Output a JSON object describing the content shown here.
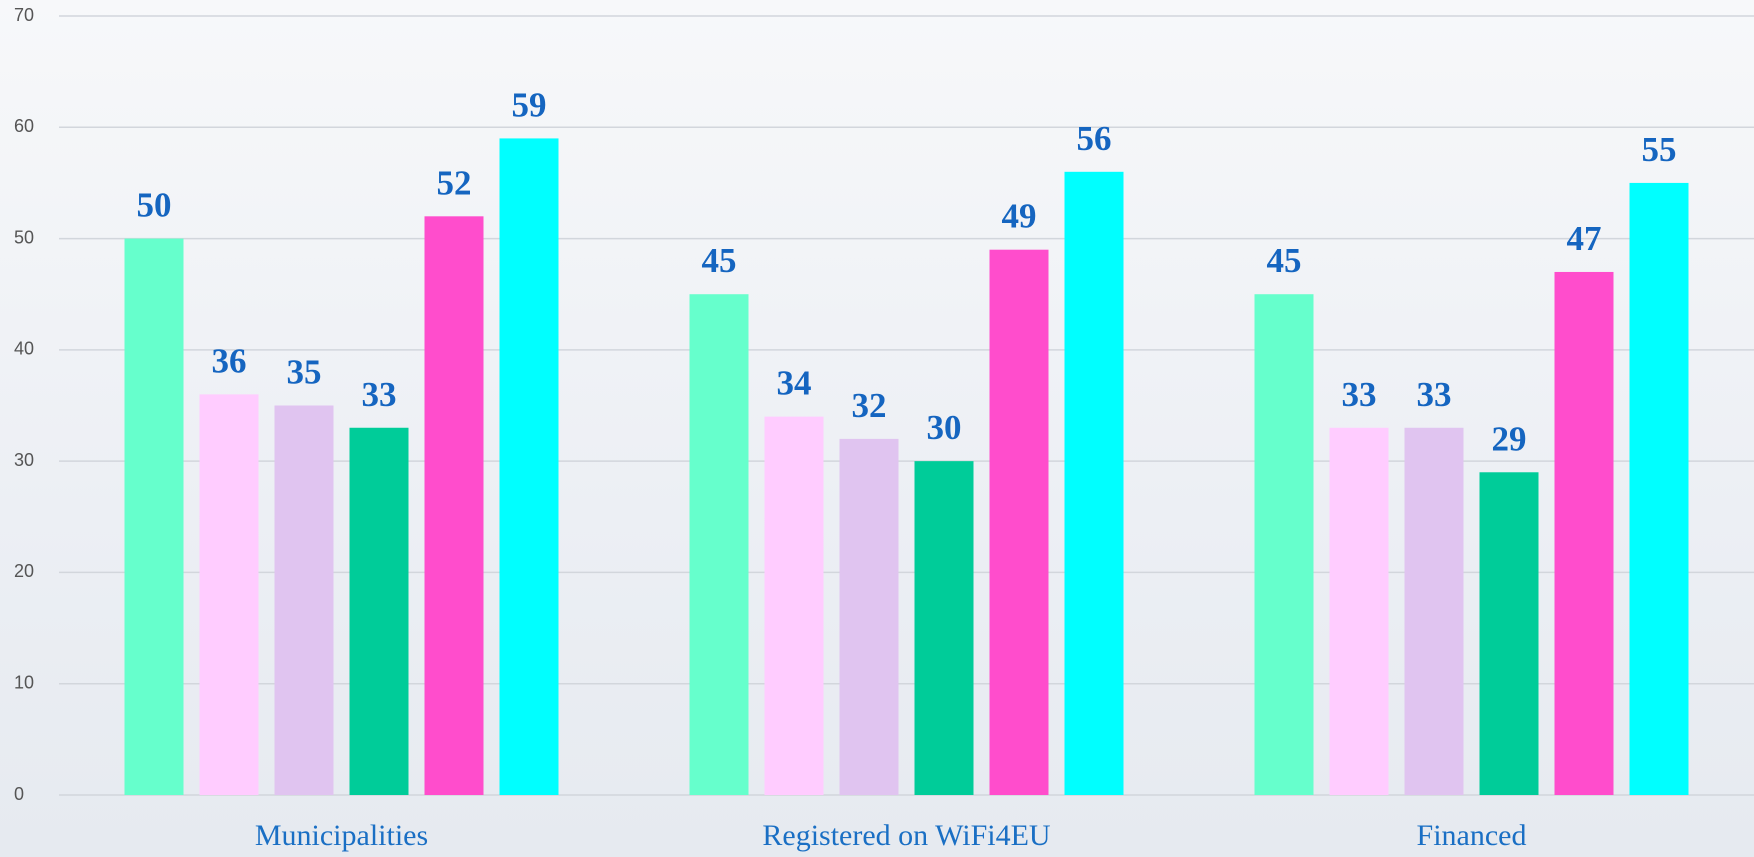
{
  "chart_data": {
    "type": "bar",
    "categories": [
      "Municipalities",
      "Registered on WiFi4EU",
      "Financed"
    ],
    "series": [
      {
        "color": "#66ffcc",
        "values": [
          50,
          45,
          45
        ]
      },
      {
        "color": "#ffccff",
        "values": [
          36,
          34,
          33
        ]
      },
      {
        "color": "#e0c4f0",
        "values": [
          35,
          32,
          33
        ]
      },
      {
        "color": "#00cc99",
        "values": [
          33,
          30,
          29
        ]
      },
      {
        "color": "#ff4dcc",
        "values": [
          52,
          49,
          47
        ]
      },
      {
        "color": "#00ffff",
        "values": [
          59,
          56,
          55
        ]
      }
    ],
    "ylim": [
      0,
      70
    ],
    "yticks": [
      0,
      10,
      20,
      30,
      40,
      50,
      60,
      70
    ],
    "grid": true
  }
}
